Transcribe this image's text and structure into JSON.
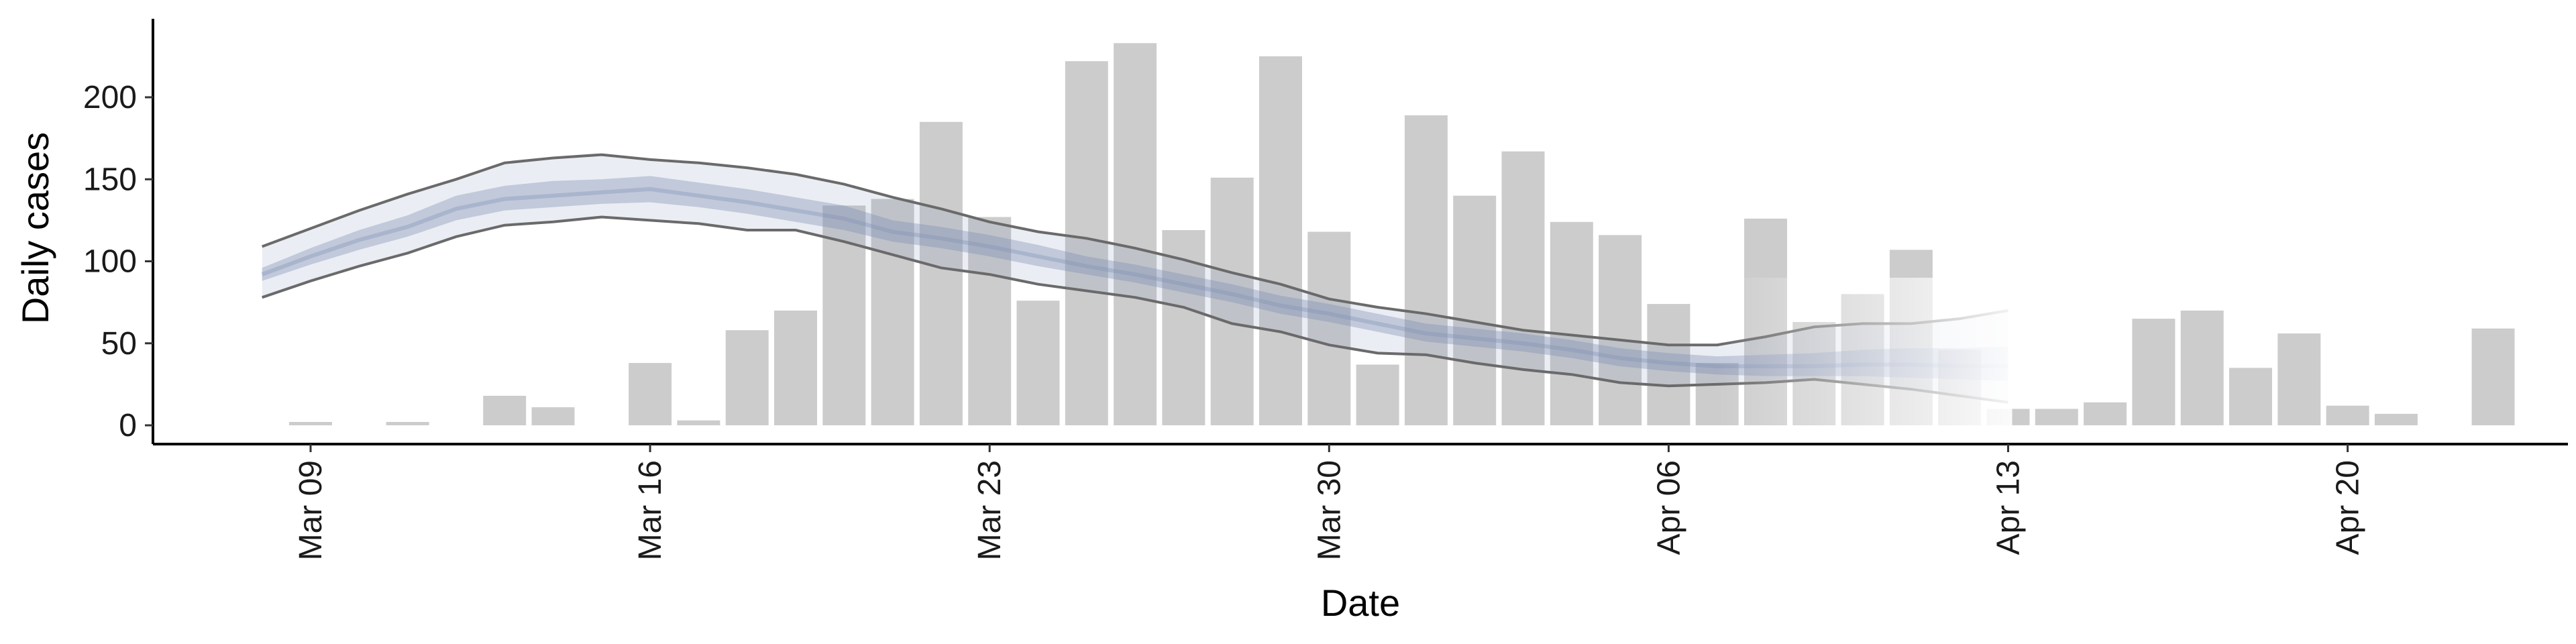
{
  "chart_data": {
    "type": "bar",
    "xlabel": "Date",
    "ylabel": "Daily cases",
    "ylim": [
      -10,
      245
    ],
    "yticks": [
      0,
      50,
      100,
      150,
      200
    ],
    "x_ticks": [
      {
        "date": "2020-03-09",
        "label": "Mar 09"
      },
      {
        "date": "2020-03-16",
        "label": "Mar 16"
      },
      {
        "date": "2020-03-23",
        "label": "Mar 23"
      },
      {
        "date": "2020-03-30",
        "label": "Mar 30"
      },
      {
        "date": "2020-04-06",
        "label": "Apr 06"
      },
      {
        "date": "2020-04-13",
        "label": "Apr 13"
      },
      {
        "date": "2020-04-20",
        "label": "Apr 20"
      }
    ],
    "grid": false,
    "bars": {
      "name": "Daily cases",
      "color": "#cccccc",
      "dates": [
        "2020-03-09",
        "2020-03-10",
        "2020-03-11",
        "2020-03-12",
        "2020-03-13",
        "2020-03-14",
        "2020-03-15",
        "2020-03-16",
        "2020-03-17",
        "2020-03-18",
        "2020-03-19",
        "2020-03-20",
        "2020-03-21",
        "2020-03-22",
        "2020-03-23",
        "2020-03-24",
        "2020-03-25",
        "2020-03-26",
        "2020-03-27",
        "2020-03-28",
        "2020-03-29",
        "2020-03-30",
        "2020-03-31",
        "2020-04-01",
        "2020-04-02",
        "2020-04-03",
        "2020-04-04",
        "2020-04-05",
        "2020-04-06",
        "2020-04-07",
        "2020-04-08",
        "2020-04-09",
        "2020-04-10",
        "2020-04-11",
        "2020-04-12",
        "2020-04-13",
        "2020-04-14",
        "2020-04-15",
        "2020-04-16",
        "2020-04-17",
        "2020-04-18",
        "2020-04-19",
        "2020-04-20",
        "2020-04-21",
        "2020-04-22",
        "2020-04-23"
      ],
      "values": [
        1,
        0,
        1,
        0,
        18,
        11,
        0,
        38,
        3,
        58,
        70,
        134,
        138,
        185,
        127,
        76,
        222,
        233,
        119,
        151,
        225,
        118,
        37,
        189,
        140,
        167,
        124,
        116,
        74,
        38,
        126,
        63,
        80,
        107,
        46,
        10,
        10,
        14,
        65,
        70,
        35,
        56,
        12,
        7,
        0,
        59
      ]
    },
    "estimate": {
      "color": "#7f8fb5",
      "dates": [
        "2020-03-08",
        "2020-03-09",
        "2020-03-10",
        "2020-03-11",
        "2020-03-12",
        "2020-03-13",
        "2020-03-14",
        "2020-03-15",
        "2020-03-16",
        "2020-03-17",
        "2020-03-18",
        "2020-03-19",
        "2020-03-20",
        "2020-03-21",
        "2020-03-22",
        "2020-03-23",
        "2020-03-24",
        "2020-03-25",
        "2020-03-26",
        "2020-03-27",
        "2020-03-28",
        "2020-03-29",
        "2020-03-30",
        "2020-03-31",
        "2020-04-01",
        "2020-04-02",
        "2020-04-03",
        "2020-04-04",
        "2020-04-05",
        "2020-04-06",
        "2020-04-07",
        "2020-04-08",
        "2020-04-09",
        "2020-04-10",
        "2020-04-11",
        "2020-04-12",
        "2020-04-13"
      ],
      "median": [
        92,
        103,
        113,
        121,
        132,
        138,
        140,
        142,
        144,
        140,
        136,
        131,
        126,
        118,
        114,
        109,
        103,
        97,
        92,
        86,
        80,
        73,
        68,
        62,
        56,
        53,
        50,
        46,
        41,
        38,
        36,
        36,
        36,
        37,
        37,
        36,
        36
      ],
      "iqr_low": [
        88,
        98,
        107,
        115,
        125,
        131,
        133,
        135,
        136,
        133,
        129,
        124,
        119,
        112,
        108,
        103,
        97,
        92,
        87,
        81,
        75,
        68,
        63,
        57,
        51,
        48,
        45,
        41,
        36,
        33,
        31,
        30,
        30,
        30,
        29,
        28,
        27
      ],
      "iqr_high": [
        96,
        108,
        119,
        128,
        140,
        146,
        149,
        150,
        152,
        148,
        144,
        139,
        134,
        125,
        121,
        116,
        110,
        103,
        98,
        92,
        86,
        79,
        74,
        68,
        62,
        59,
        56,
        52,
        47,
        44,
        42,
        43,
        44,
        46,
        47,
        47,
        48
      ],
      "ci_low": [
        78,
        88,
        97,
        105,
        115,
        122,
        124,
        127,
        125,
        123,
        119,
        119,
        112,
        104,
        96,
        92,
        86,
        82,
        78,
        72,
        62,
        57,
        49,
        44,
        43,
        38,
        34,
        31,
        26,
        24,
        25,
        26,
        28,
        25,
        22,
        18,
        14
      ],
      "ci_high": [
        109,
        120,
        131,
        141,
        150,
        160,
        163,
        165,
        162,
        160,
        157,
        153,
        147,
        139,
        132,
        124,
        118,
        114,
        108,
        101,
        93,
        86,
        77,
        72,
        68,
        63,
        58,
        55,
        52,
        49,
        49,
        54,
        60,
        62,
        62,
        65,
        70
      ]
    }
  }
}
